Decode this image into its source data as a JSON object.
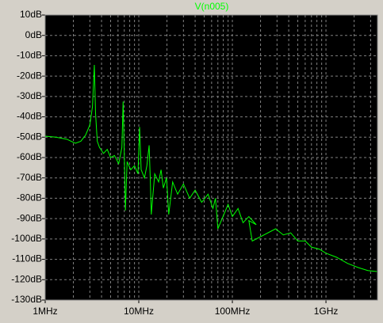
{
  "chart_data": {
    "type": "line",
    "series": [
      {
        "name": "V(n005)",
        "color": "#00ff00",
        "values": [
          -49.5,
          -50,
          -51,
          -53,
          -52,
          -49,
          -44,
          -35,
          -14.5,
          -38,
          -52,
          -55,
          -58,
          -56,
          -60,
          -59,
          -63,
          -55,
          -32.5,
          -58,
          -86,
          -62,
          -66,
          -64,
          -68,
          -45,
          -66,
          -70,
          -64,
          -54,
          -72,
          -88,
          -68,
          -72,
          -66,
          -75,
          -70,
          -88,
          -72,
          -78,
          -73,
          -80,
          -76,
          -82,
          -78,
          -85,
          -80,
          -95,
          -83,
          -89,
          -85,
          -92,
          -89,
          -93,
          -91,
          -101,
          -95,
          -98,
          -97,
          -101,
          -101,
          -104,
          -105,
          -107,
          -109,
          -112,
          -114,
          -115.5,
          -116
        ]
      }
    ],
    "x": [
      1000000,
      1300000,
      1700000,
      2100000,
      2400000,
      2700000,
      3000000,
      3200000,
      3350000,
      3450000,
      3600000,
      3800000,
      4200000,
      4600000,
      5000000,
      5500000,
      6100000,
      6600000,
      6800000,
      7000000,
      7200000,
      7500000,
      8200000,
      9000000,
      9800000,
      10200000,
      10600000,
      11500000,
      12200000,
      12900000,
      13300000,
      13600000,
      14800000,
      16300000,
      17300000,
      18300000,
      19800000,
      20900000,
      23000000,
      26000000,
      30000000,
      35000000,
      40000000,
      47000000,
      55000000,
      62000000,
      66000000,
      70000000,
      90000000,
      100000000,
      115000000,
      130000000,
      150000000,
      180000000,
      150000000,
      163000000,
      290000000,
      350000000,
      420000000,
      500000000,
      600000000,
      700000000,
      850000000,
      1000000000,
      1300000000,
      1700000000,
      2200000000,
      2800000000,
      3500000000
    ],
    "xscale": "log",
    "xlim": [
      1000000,
      3550000000
    ],
    "xticks": [
      {
        "value": 1000000,
        "label": "1MHz"
      },
      {
        "value": 10000000,
        "label": "10MHz"
      },
      {
        "value": 100000000,
        "label": "100MHz"
      },
      {
        "value": 1000000000,
        "label": "1GHz"
      }
    ],
    "xminor_ticks": [
      2000000,
      3000000,
      4000000,
      5000000,
      6000000,
      7000000,
      8000000,
      9000000,
      20000000,
      30000000,
      40000000,
      50000000,
      60000000,
      70000000,
      80000000,
      90000000,
      200000000,
      300000000,
      400000000,
      500000000,
      600000000,
      700000000,
      800000000,
      900000000,
      2000000000,
      3000000000
    ],
    "ylim": [
      -130,
      10
    ],
    "yticks": [
      {
        "value": 10,
        "label": "10dB"
      },
      {
        "value": 0,
        "label": "0dB"
      },
      {
        "value": -10,
        "label": "-10dB"
      },
      {
        "value": -20,
        "label": "-20dB"
      },
      {
        "value": -30,
        "label": "-30dB"
      },
      {
        "value": -40,
        "label": "-40dB"
      },
      {
        "value": -50,
        "label": "-50dB"
      },
      {
        "value": -60,
        "label": "-60dB"
      },
      {
        "value": -70,
        "label": "-70dB"
      },
      {
        "value": -80,
        "label": "-80dB"
      },
      {
        "value": -90,
        "label": "-90dB"
      },
      {
        "value": -100,
        "label": "-100dB"
      },
      {
        "value": -110,
        "label": "-110dB"
      },
      {
        "value": -120,
        "label": "-120dB"
      },
      {
        "value": -130,
        "label": "-130dB"
      }
    ],
    "grid": true
  }
}
